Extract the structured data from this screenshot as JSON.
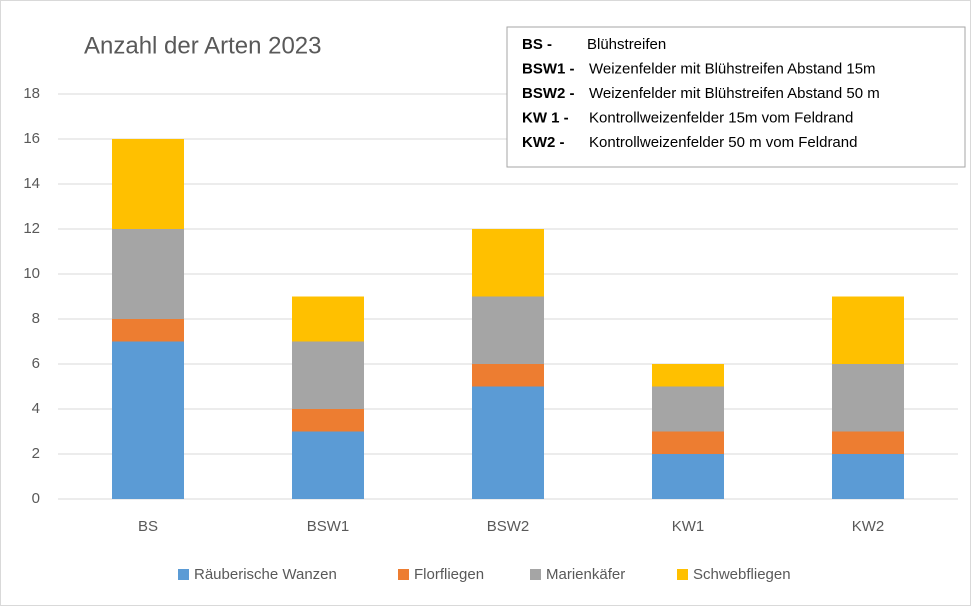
{
  "chart_data": {
    "type": "stacked_bar",
    "title": "Anzahl der Arten 2023",
    "categories": [
      "BS",
      "BSW1",
      "BSW2",
      "KW1",
      "KW2"
    ],
    "series": [
      {
        "name": "Räuberische Wanzen",
        "color": "#5b9bd5",
        "values": [
          7,
          3,
          5,
          2,
          2
        ]
      },
      {
        "name": "Florfliegen",
        "color": "#ed7d31",
        "values": [
          1,
          1,
          1,
          1,
          1
        ]
      },
      {
        "name": "Marienkäfer",
        "color": "#a5a5a5",
        "values": [
          4,
          3,
          3,
          2,
          3
        ]
      },
      {
        "name": "Schwebfliegen",
        "color": "#ffc000",
        "values": [
          4,
          2,
          3,
          1,
          3
        ]
      }
    ],
    "ylim": [
      0,
      18
    ],
    "yticks": [
      0,
      2,
      4,
      6,
      8,
      10,
      12,
      14,
      16,
      18
    ],
    "grid": true,
    "legend": "bottom",
    "annotations": [
      {
        "abbr": "BS -",
        "text": "Blühstreifen"
      },
      {
        "abbr": "BSW1 -",
        "text": "Weizenfelder mit Blühstreifen Abstand 15m"
      },
      {
        "abbr": "BSW2 -",
        "text": "Weizenfelder mit Blühstreifen Abstand 50 m"
      },
      {
        "abbr": "KW 1 -",
        "text": "Kontrollweizenfelder 15m vom Feldrand"
      },
      {
        "abbr": "KW2 -",
        "text": "Kontrollweizenfelder 50 m vom Feldrand"
      }
    ]
  }
}
